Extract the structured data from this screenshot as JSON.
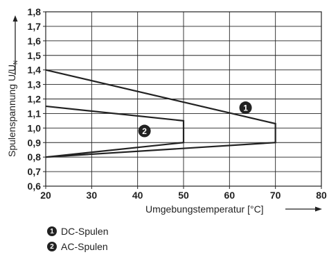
{
  "chart_data": {
    "type": "line",
    "xlabel": "Umgebungstemperatur [°C]",
    "ylabel": "Spulenspannung U/U",
    "ylabel_subscript": "N",
    "xlim": [
      20,
      80
    ],
    "ylim": [
      0.6,
      1.8
    ],
    "x_ticks": [
      "20",
      "30",
      "40",
      "50",
      "60",
      "70",
      "80"
    ],
    "y_ticks": [
      "0,6",
      "0,7",
      "0,8",
      "0,9",
      "1,0",
      "1,1",
      "1,2",
      "1,3",
      "1,4",
      "1,5",
      "1,6",
      "1,7",
      "1,8"
    ],
    "grid": true,
    "series": [
      {
        "name": "DC-Spulen",
        "badge": "1",
        "points": [
          [
            20,
            1.4
          ],
          [
            70,
            1.03
          ],
          [
            70,
            0.9
          ],
          [
            20,
            0.8
          ]
        ],
        "badge_at": [
          63.5,
          1.14
        ]
      },
      {
        "name": "AC-Spulen",
        "badge": "2",
        "points": [
          [
            20,
            1.15
          ],
          [
            50,
            1.05
          ],
          [
            50,
            0.9
          ],
          [
            20,
            0.8
          ]
        ],
        "badge_at": [
          41.5,
          0.98
        ]
      }
    ],
    "legend_position": "bottom-left"
  },
  "legend": [
    {
      "badge": "1",
      "label": "DC-Spulen"
    },
    {
      "badge": "2",
      "label": "AC-Spulen"
    }
  ],
  "colors": {
    "line": "#222222",
    "grid": "#222222",
    "background": "#ffffff"
  }
}
